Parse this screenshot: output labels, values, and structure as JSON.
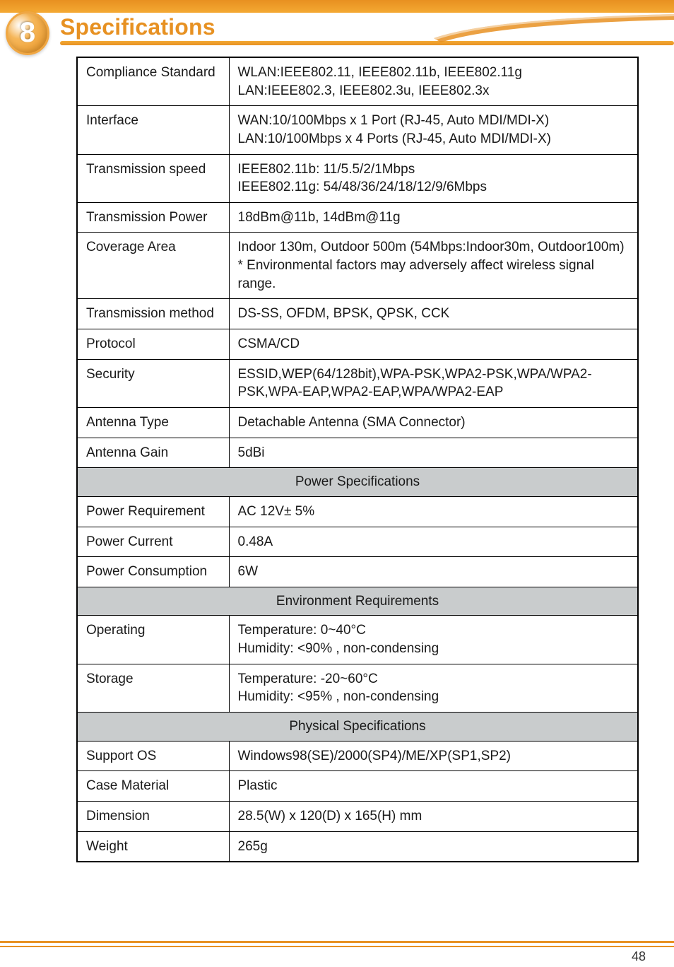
{
  "chapter_number": "8",
  "section_title": "Specifications",
  "page_number": "48",
  "colors": {
    "accent": "#e79122",
    "section_bg": "#c9cccd",
    "border": "#000000",
    "text": "#1a1a1a"
  },
  "specs": {
    "rows": [
      {
        "label": "Compliance Standard",
        "value": "WLAN:IEEE802.11, IEEE802.11b, IEEE802.11g\nLAN:IEEE802.3, IEEE802.3u, IEEE802.3x"
      },
      {
        "label": "Interface",
        "value": "WAN:10/100Mbps x 1 Port (RJ-45, Auto MDI/MDI-X)\nLAN:10/100Mbps x 4 Ports (RJ-45, Auto MDI/MDI-X)"
      },
      {
        "label": "Transmission speed",
        "value": "IEEE802.11b: 11/5.5/2/1Mbps\nIEEE802.11g: 54/48/36/24/18/12/9/6Mbps"
      },
      {
        "label": "Transmission Power",
        "value": "18dBm@11b, 14dBm@11g"
      },
      {
        "label": "Coverage Area",
        "value": "Indoor 130m, Outdoor 500m (54Mbps:Indoor30m, Outdoor100m)\n* Environmental factors may adversely affect wireless signal range."
      },
      {
        "label": "Transmission method",
        "value": "DS-SS, OFDM, BPSK, QPSK, CCK"
      },
      {
        "label": "Protocol",
        "value": "CSMA/CD"
      },
      {
        "label": "Security",
        "value": "ESSID,WEP(64/128bit),WPA-PSK,WPA2-PSK,WPA/WPA2-PSK,WPA-EAP,WPA2-EAP,WPA/WPA2-EAP"
      },
      {
        "label": "Antenna Type",
        "value": "Detachable Antenna (SMA Connector)"
      },
      {
        "label": "Antenna Gain",
        "value": "5dBi"
      }
    ]
  },
  "sections": {
    "power": {
      "heading": "Power Specifications",
      "rows": [
        {
          "label": "Power Requirement",
          "value": "AC 12V± 5%"
        },
        {
          "label": "Power Current",
          "value": "0.48A"
        },
        {
          "label": "Power Consumption",
          "value": "6W"
        }
      ]
    },
    "environment": {
      "heading": "Environment Requirements",
      "rows": [
        {
          "label": "Operating",
          "value": "Temperature: 0~40°C\nHumidity: <90% , non-condensing"
        },
        {
          "label": "Storage",
          "value": "Temperature: -20~60°C\nHumidity: <95% , non-condensing"
        }
      ]
    },
    "physical": {
      "heading": "Physical Specifications",
      "rows": [
        {
          "label": "Support OS",
          "value": "Windows98(SE)/2000(SP4)/ME/XP(SP1,SP2)"
        },
        {
          "label": "Case Material",
          "value": "Plastic"
        },
        {
          "label": "Dimension",
          "value": "28.5(W) x 120(D) x 165(H) mm"
        },
        {
          "label": "Weight",
          "value": "265g"
        }
      ]
    }
  }
}
